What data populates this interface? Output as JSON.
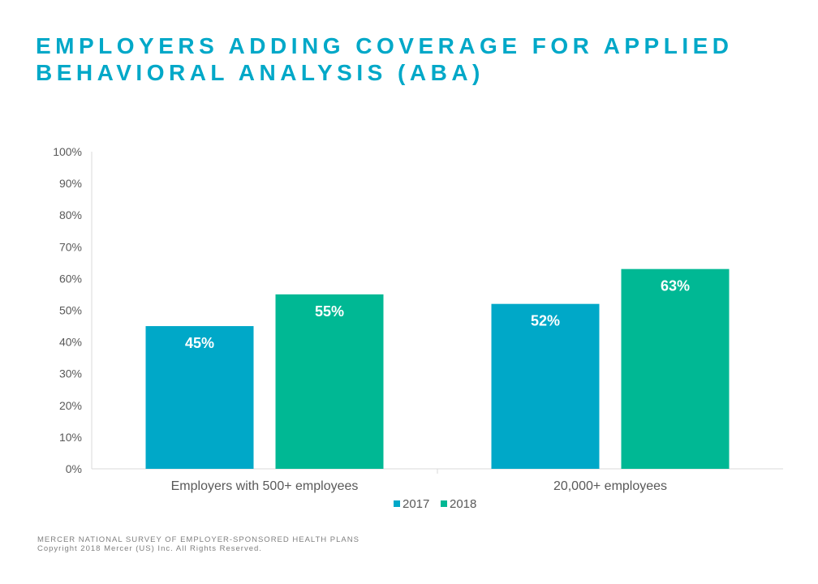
{
  "title": {
    "line1": "EMPLOYERS ADDING COVERAGE FOR APPLIED",
    "line2": "BEHAVIORAL ANALYSIS (ABA)"
  },
  "chart_data": {
    "type": "bar",
    "categories": [
      "Employers with 500+ employees",
      "20,000+ employees"
    ],
    "series": [
      {
        "name": "2017",
        "values": [
          45,
          52
        ],
        "labels": [
          "45%",
          "52%"
        ],
        "color": "#00a8c8"
      },
      {
        "name": "2018",
        "values": [
          55,
          63
        ],
        "labels": [
          "55%",
          "63%"
        ],
        "color": "#00b894"
      }
    ],
    "ylim": [
      0,
      100
    ],
    "yticks": [
      "0%",
      "10%",
      "20%",
      "30%",
      "40%",
      "50%",
      "60%",
      "70%",
      "80%",
      "90%",
      "100%"
    ],
    "grid": false,
    "legend_position": "bottom",
    "axis_color": "#d9d9d9"
  },
  "footer": {
    "line1": "MERCER NATIONAL SURVEY OF EMPLOYER-SPONSORED HEALTH PLANS",
    "line2": "Copyright 2018 Mercer (US) Inc. All Rights Reserved."
  }
}
